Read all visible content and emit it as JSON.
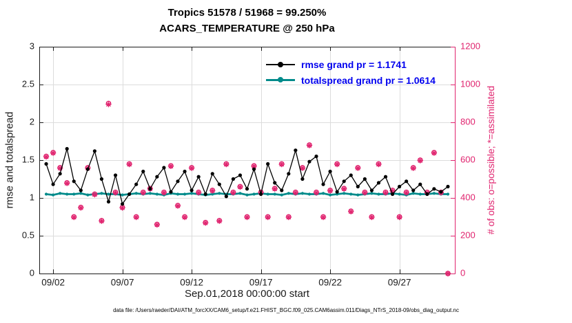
{
  "title": {
    "line1": "Tropics 51578 / 51968 = 99.250%",
    "line2": "ACARS_TEMPERATURE @ 250 hPa"
  },
  "axes": {
    "left_label": "rmse and totalspread",
    "right_label": "# of obs: o=possible; *=assimilated",
    "x_label": "Sep.01,2018 00:00:00 start",
    "left_ticks": [
      0,
      0.5,
      1,
      1.5,
      2,
      2.5,
      3
    ],
    "right_ticks": [
      0,
      200,
      400,
      600,
      800,
      1000,
      1200
    ],
    "x_ticks": [
      {
        "day": 2,
        "label": "09/02"
      },
      {
        "day": 7,
        "label": "09/07"
      },
      {
        "day": 12,
        "label": "09/12"
      },
      {
        "day": 17,
        "label": "09/17"
      },
      {
        "day": 22,
        "label": "09/22"
      },
      {
        "day": 27,
        "label": "09/27"
      }
    ]
  },
  "legend": [
    {
      "label": "rmse grand pr = 1.1741",
      "color": "#000000"
    },
    {
      "label": "totalspread grand pr = 1.0614",
      "color": "#008b8b"
    }
  ],
  "colors": {
    "rmse": "#000000",
    "totalspread": "#008b8b",
    "obs": "#e0236e",
    "grid": "#dcdcdc",
    "axis": "#1a1a1a",
    "legend_text": "#0000ee"
  },
  "caption": "data file: /Users/raeder/DAI/ATM_forcXX/CAM6_setup/f.e21.FHIST_BGC.f09_025.CAM6assim.011/Diags_NTrS_2018-09/obs_diag_output.nc",
  "chart_data": {
    "type": "line",
    "title": "Tropics 51578 / 51968 = 99.250% | ACARS_TEMPERATURE @ 250 hPa",
    "xlabel": "Sep.01,2018 00:00:00 start",
    "ylabel_left": "rmse and totalspread",
    "ylabel_right": "# of obs: o=possible; *=assimilated",
    "xlim": [
      1,
      31
    ],
    "ylim_left": [
      0,
      3
    ],
    "ylim_right": [
      0,
      1200
    ],
    "grid": true,
    "legend_position": "top-center-inside",
    "x": [
      1.5,
      2,
      2.5,
      3,
      3.5,
      4,
      4.5,
      5,
      5.5,
      6,
      6.5,
      7,
      7.5,
      8,
      8.5,
      9,
      9.5,
      10,
      10.5,
      11,
      11.5,
      12,
      12.5,
      13,
      13.5,
      14,
      14.5,
      15,
      15.5,
      16,
      16.5,
      17,
      17.5,
      18,
      18.5,
      19,
      19.5,
      20,
      20.5,
      21,
      21.5,
      22,
      22.5,
      23,
      23.5,
      24,
      24.5,
      25,
      25.5,
      26,
      26.5,
      27,
      27.5,
      28,
      28.5,
      29,
      29.5,
      30,
      30.5
    ],
    "series": [
      {
        "name": "rmse",
        "axis": "left",
        "marker": "dot",
        "grand_mean": 1.1741,
        "values": [
          1.45,
          1.18,
          1.32,
          1.65,
          1.22,
          1.1,
          1.38,
          1.62,
          1.25,
          0.95,
          1.3,
          0.92,
          1.05,
          1.18,
          1.35,
          1.12,
          1.28,
          1.4,
          1.08,
          1.22,
          1.35,
          1.1,
          1.28,
          1.05,
          1.32,
          1.18,
          1.02,
          1.25,
          1.3,
          1.12,
          1.38,
          1.05,
          1.45,
          1.2,
          1.1,
          1.32,
          1.63,
          1.25,
          1.48,
          1.55,
          1.18,
          1.35,
          1.08,
          1.22,
          1.3,
          1.15,
          1.25,
          1.1,
          1.2,
          1.28,
          1.05,
          1.15,
          1.22,
          1.1,
          1.18,
          1.05,
          1.12,
          1.08,
          1.15
        ]
      },
      {
        "name": "totalspread",
        "axis": "left",
        "marker": "dot",
        "grand_mean": 1.0614,
        "values": [
          1.05,
          1.04,
          1.06,
          1.05,
          1.05,
          1.06,
          1.04,
          1.05,
          1.06,
          1.05,
          1.05,
          1.04,
          1.05,
          1.06,
          1.05,
          1.06,
          1.05,
          1.04,
          1.06,
          1.05,
          1.05,
          1.06,
          1.05,
          1.04,
          1.05,
          1.06,
          1.05,
          1.05,
          1.06,
          1.04,
          1.05,
          1.06,
          1.05,
          1.05,
          1.04,
          1.06,
          1.05,
          1.06,
          1.05,
          1.05,
          1.06,
          1.04,
          1.05,
          1.06,
          1.05,
          1.04,
          1.05,
          1.06,
          1.05,
          1.05,
          1.06,
          1.05,
          1.04,
          1.06,
          1.05,
          1.05,
          1.06,
          1.05,
          1.05
        ]
      },
      {
        "name": "obs_possible",
        "axis": "right",
        "marker": "o",
        "values": [
          620,
          640,
          560,
          480,
          300,
          350,
          560,
          420,
          280,
          900,
          430,
          350,
          580,
          300,
          430,
          450,
          260,
          430,
          570,
          360,
          300,
          560,
          430,
          270,
          440,
          280,
          580,
          430,
          460,
          300,
          570,
          430,
          300,
          450,
          580,
          300,
          430,
          560,
          680,
          430,
          300,
          440,
          580,
          450,
          330,
          560,
          430,
          300,
          580,
          430,
          440,
          300,
          430,
          560,
          600,
          430,
          640,
          430,
          0
        ]
      },
      {
        "name": "obs_assimilated",
        "axis": "right",
        "marker": "*",
        "values": [
          618,
          638,
          558,
          478,
          298,
          348,
          558,
          418,
          278,
          895,
          428,
          348,
          578,
          298,
          428,
          448,
          258,
          428,
          568,
          358,
          298,
          558,
          428,
          268,
          438,
          278,
          578,
          428,
          458,
          298,
          568,
          428,
          298,
          448,
          578,
          298,
          428,
          558,
          678,
          428,
          298,
          438,
          578,
          448,
          328,
          558,
          428,
          298,
          578,
          428,
          438,
          298,
          428,
          558,
          598,
          428,
          638,
          428,
          0
        ]
      }
    ]
  }
}
